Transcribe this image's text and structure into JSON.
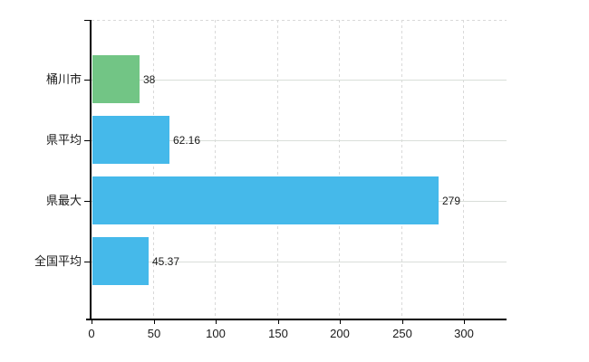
{
  "chart_data": {
    "type": "bar",
    "orientation": "horizontal",
    "title": "",
    "xlabel": "",
    "ylabel": "",
    "categories": [
      "桶川市",
      "県平均",
      "県最大",
      "全国平均"
    ],
    "values": [
      38,
      62.16,
      279,
      45.37
    ],
    "value_labels": [
      "38",
      "62.16",
      "279",
      "45.37"
    ],
    "bar_colors": [
      "#72c585",
      "#45b9ea",
      "#45b9ea",
      "#45b9ea"
    ],
    "x_ticks": [
      0,
      50,
      100,
      150,
      200,
      250,
      300
    ],
    "x_tick_labels": [
      "0",
      "50",
      "100",
      "150",
      "200",
      "250",
      "300"
    ],
    "xlim": [
      0,
      334
    ],
    "grid": true,
    "legend": false
  },
  "colors": {
    "highlight_bar": "#72c585",
    "default_bar": "#45b9ea",
    "vertical_grid": "#d9d9d9",
    "horizontal_grid": "#d9ded9",
    "axis": "#000000",
    "text": "#1a1a1a",
    "background": "#ffffff"
  }
}
